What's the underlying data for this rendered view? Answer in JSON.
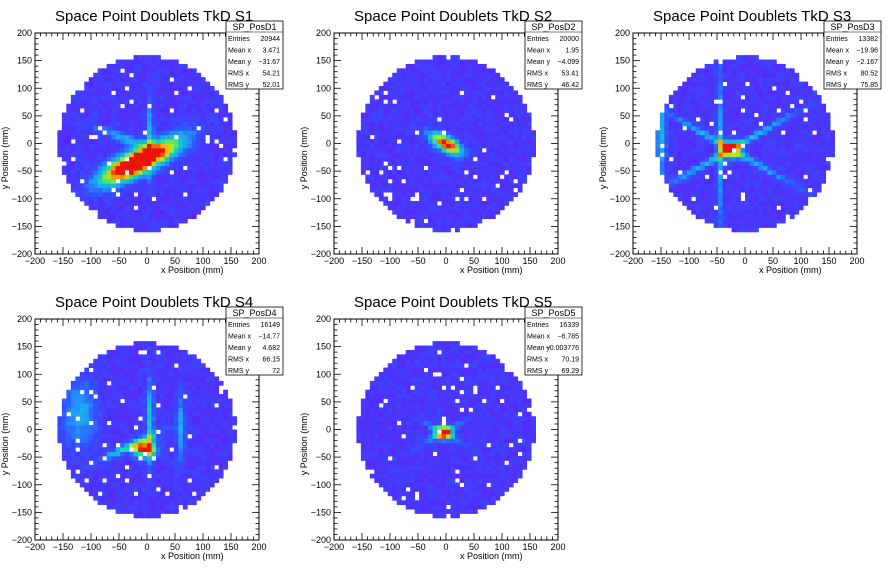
{
  "chart_data": [
    {
      "type": "heatmap",
      "title": "Space Point Doublets TkD S1",
      "xlabel": "x Position (mm)",
      "ylabel": "y Position (mm)",
      "xlim": [
        -200,
        200
      ],
      "ylim": [
        -200,
        200
      ],
      "xticks": [
        "−200",
        "−150",
        "−100",
        "−50",
        "0",
        "50",
        "100",
        "150",
        "200"
      ],
      "yticks": [
        "−200",
        "−150",
        "−100",
        "−50",
        "0",
        "50",
        "100",
        "150",
        "200"
      ],
      "stats": {
        "name": "SP_PosD1",
        "rows": [
          {
            "label": "Entries",
            "value": "20944"
          },
          {
            "label": "Mean x",
            "value": "3.471"
          },
          {
            "label": "Mean y",
            "value": "−31.67"
          },
          {
            "label": "RMS x",
            "value": "54.21"
          },
          {
            "label": "RMS y",
            "value": "52.01"
          }
        ]
      },
      "hot": [
        {
          "x": -35,
          "y": -40,
          "amp": 1.0,
          "sx": 40,
          "sy": 14,
          "angle": 30
        },
        {
          "x": 15,
          "y": -20,
          "amp": 0.75,
          "sx": 45,
          "sy": 14,
          "angle": 30
        },
        {
          "x": 5,
          "y": 10,
          "amp": 0.35,
          "sx": 4,
          "sy": 45,
          "angle": 0
        },
        {
          "x": -40,
          "y": 10,
          "amp": 0.3,
          "sx": 40,
          "sy": 6,
          "angle": -20
        }
      ]
    },
    {
      "type": "heatmap",
      "title": "Space Point Doublets TkD S2",
      "xlabel": "x Position (mm)",
      "ylabel": "y Position (mm)",
      "xlim": [
        -200,
        200
      ],
      "ylim": [
        -200,
        200
      ],
      "xticks": [
        "−200",
        "−150",
        "−100",
        "−50",
        "0",
        "50",
        "100",
        "150",
        "200"
      ],
      "yticks": [
        "−200",
        "−150",
        "−100",
        "−50",
        "0",
        "50",
        "100",
        "150",
        "200"
      ],
      "stats": {
        "name": "SP_PosD2",
        "rows": [
          {
            "label": "Entries",
            "value": "20000"
          },
          {
            "label": "Mean x",
            "value": "1.95"
          },
          {
            "label": "Mean y",
            "value": "−4.099"
          },
          {
            "label": "RMS x",
            "value": "53.41"
          },
          {
            "label": "RMS y",
            "value": "46.42"
          }
        ]
      },
      "hot": [
        {
          "x": 0,
          "y": 0,
          "amp": 1.0,
          "sx": 22,
          "sy": 9,
          "angle": -30
        }
      ]
    },
    {
      "type": "heatmap",
      "title": "Space Point Doublets TkD S3",
      "xlabel": "x Position (mm)",
      "ylabel": "y Position (mm)",
      "xlim": [
        -200,
        200
      ],
      "ylim": [
        -200,
        200
      ],
      "xticks": [
        "−200",
        "−150",
        "−100",
        "−50",
        "0",
        "50",
        "100",
        "150",
        "200"
      ],
      "yticks": [
        "−200",
        "−150",
        "−100",
        "−50",
        "0",
        "50",
        "100",
        "150",
        "200"
      ],
      "stats": {
        "name": "SP_PosD3",
        "rows": [
          {
            "label": "Entries",
            "value": "13382"
          },
          {
            "label": "Mean x",
            "value": "−19.96"
          },
          {
            "label": "Mean y",
            "value": "−2.167"
          },
          {
            "label": "RMS x",
            "value": "80.52"
          },
          {
            "label": "RMS y",
            "value": "75.85"
          }
        ]
      },
      "hot": [
        {
          "x": -25,
          "y": -10,
          "amp": 0.9,
          "sx": 12,
          "sy": 10,
          "angle": 0
        },
        {
          "x": -25,
          "y": -10,
          "amp": 0.4,
          "sx": 90,
          "sy": 4,
          "angle": 30
        },
        {
          "x": -25,
          "y": -10,
          "amp": 0.4,
          "sx": 90,
          "sy": 4,
          "angle": -30
        },
        {
          "x": -45,
          "y": 0,
          "amp": 0.35,
          "sx": 4,
          "sy": 90,
          "angle": 0
        },
        {
          "x": -150,
          "y": 10,
          "amp": 0.35,
          "sx": 6,
          "sy": 50,
          "angle": 0
        }
      ]
    },
    {
      "type": "heatmap",
      "title": "Space Point Doublets TkD S4",
      "xlabel": "x Position (mm)",
      "ylabel": "y Position (mm)",
      "xlim": [
        -200,
        200
      ],
      "ylim": [
        -200,
        200
      ],
      "xticks": [
        "−200",
        "−150",
        "−100",
        "−50",
        "0",
        "50",
        "100",
        "150",
        "200"
      ],
      "yticks": [
        "−200",
        "−150",
        "−100",
        "−50",
        "0",
        "50",
        "100",
        "150",
        "200"
      ],
      "stats": {
        "name": "SP_PosD4",
        "rows": [
          {
            "label": "Entries",
            "value": "16149"
          },
          {
            "label": "Mean x",
            "value": "−14.77"
          },
          {
            "label": "Mean y",
            "value": "4.682"
          },
          {
            "label": "RMS x",
            "value": "66.15"
          },
          {
            "label": "RMS y",
            "value": "72"
          }
        ]
      },
      "hot": [
        {
          "x": -5,
          "y": -35,
          "amp": 1.0,
          "sx": 14,
          "sy": 9,
          "angle": 0
        },
        {
          "x": 5,
          "y": 10,
          "amp": 0.4,
          "sx": 5,
          "sy": 55,
          "angle": 0
        },
        {
          "x": -30,
          "y": -30,
          "amp": 0.45,
          "sx": 40,
          "sy": 5,
          "angle": 25
        },
        {
          "x": 60,
          "y": 0,
          "amp": 0.3,
          "sx": 5,
          "sy": 45,
          "angle": 0
        },
        {
          "x": -120,
          "y": 30,
          "amp": 0.3,
          "sx": 20,
          "sy": 40,
          "angle": 0
        }
      ]
    },
    {
      "type": "heatmap",
      "title": "Space Point Doublets TkD S5",
      "xlabel": "x Position (mm)",
      "ylabel": "y Position (mm)",
      "xlim": [
        -200,
        200
      ],
      "ylim": [
        -200,
        200
      ],
      "xticks": [
        "−200",
        "−150",
        "−100",
        "−50",
        "0",
        "50",
        "100",
        "150",
        "200"
      ],
      "yticks": [
        "−200",
        "−150",
        "−100",
        "−50",
        "0",
        "50",
        "100",
        "150",
        "200"
      ],
      "stats": {
        "name": "SP_PosD5",
        "rows": [
          {
            "label": "Entries",
            "value": "16339"
          },
          {
            "label": "Mean x",
            "value": "−6.785"
          },
          {
            "label": "Mean y",
            "value": "−0.003776"
          },
          {
            "label": "RMS x",
            "value": "70.19"
          },
          {
            "label": "RMS y",
            "value": "69.29"
          }
        ]
      },
      "hot": [
        {
          "x": -5,
          "y": -5,
          "amp": 1.0,
          "sx": 10,
          "sy": 8,
          "angle": 0
        },
        {
          "x": -5,
          "y": -5,
          "amp": 0.3,
          "sx": 30,
          "sy": 4,
          "angle": 30
        },
        {
          "x": -5,
          "y": -5,
          "amp": 0.3,
          "sx": 30,
          "sy": 4,
          "angle": -30
        }
      ]
    }
  ]
}
